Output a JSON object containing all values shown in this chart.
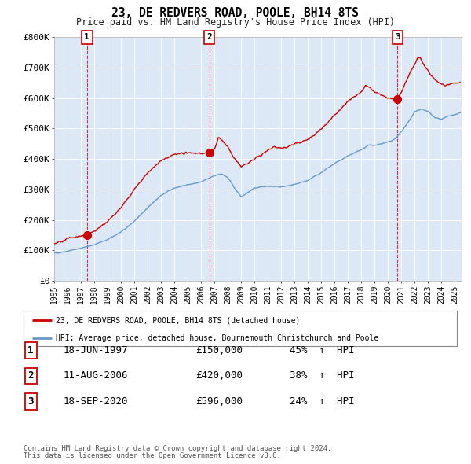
{
  "title": "23, DE REDVERS ROAD, POOLE, BH14 8TS",
  "subtitle": "Price paid vs. HM Land Registry's House Price Index (HPI)",
  "legend_line1": "23, DE REDVERS ROAD, POOLE, BH14 8TS (detached house)",
  "legend_line2": "HPI: Average price, detached house, Bournemouth Christchurch and Poole",
  "footer1": "Contains HM Land Registry data © Crown copyright and database right 2024.",
  "footer2": "This data is licensed under the Open Government Licence v3.0.",
  "transactions": [
    {
      "num": 1,
      "date": "18-JUN-1997",
      "price": 150000,
      "pct": "45%",
      "dir": "↑",
      "x_year": 1997.46
    },
    {
      "num": 2,
      "date": "11-AUG-2006",
      "price": 420000,
      "pct": "38%",
      "dir": "↑",
      "x_year": 2006.61
    },
    {
      "num": 3,
      "date": "18-SEP-2020",
      "price": 596000,
      "pct": "24%",
      "dir": "↑",
      "x_year": 2020.71
    }
  ],
  "price_color": "#cc0000",
  "hpi_color": "#6699cc",
  "plot_bg_color": "#dce8f5",
  "background_color": "#ffffff",
  "grid_color": "#ffffff",
  "ylim": [
    0,
    800000
  ],
  "xlim_start": 1995.0,
  "xlim_end": 2025.5,
  "yticks": [
    0,
    100000,
    200000,
    300000,
    400000,
    500000,
    600000,
    700000,
    800000
  ],
  "ytick_labels": [
    "£0",
    "£100K",
    "£200K",
    "£300K",
    "£400K",
    "£500K",
    "£600K",
    "£700K",
    "£800K"
  ],
  "xticks": [
    1995,
    1996,
    1997,
    1998,
    1999,
    2000,
    2001,
    2002,
    2003,
    2004,
    2005,
    2006,
    2007,
    2008,
    2009,
    2010,
    2011,
    2012,
    2013,
    2014,
    2015,
    2016,
    2017,
    2018,
    2019,
    2020,
    2021,
    2022,
    2023,
    2024,
    2025
  ]
}
